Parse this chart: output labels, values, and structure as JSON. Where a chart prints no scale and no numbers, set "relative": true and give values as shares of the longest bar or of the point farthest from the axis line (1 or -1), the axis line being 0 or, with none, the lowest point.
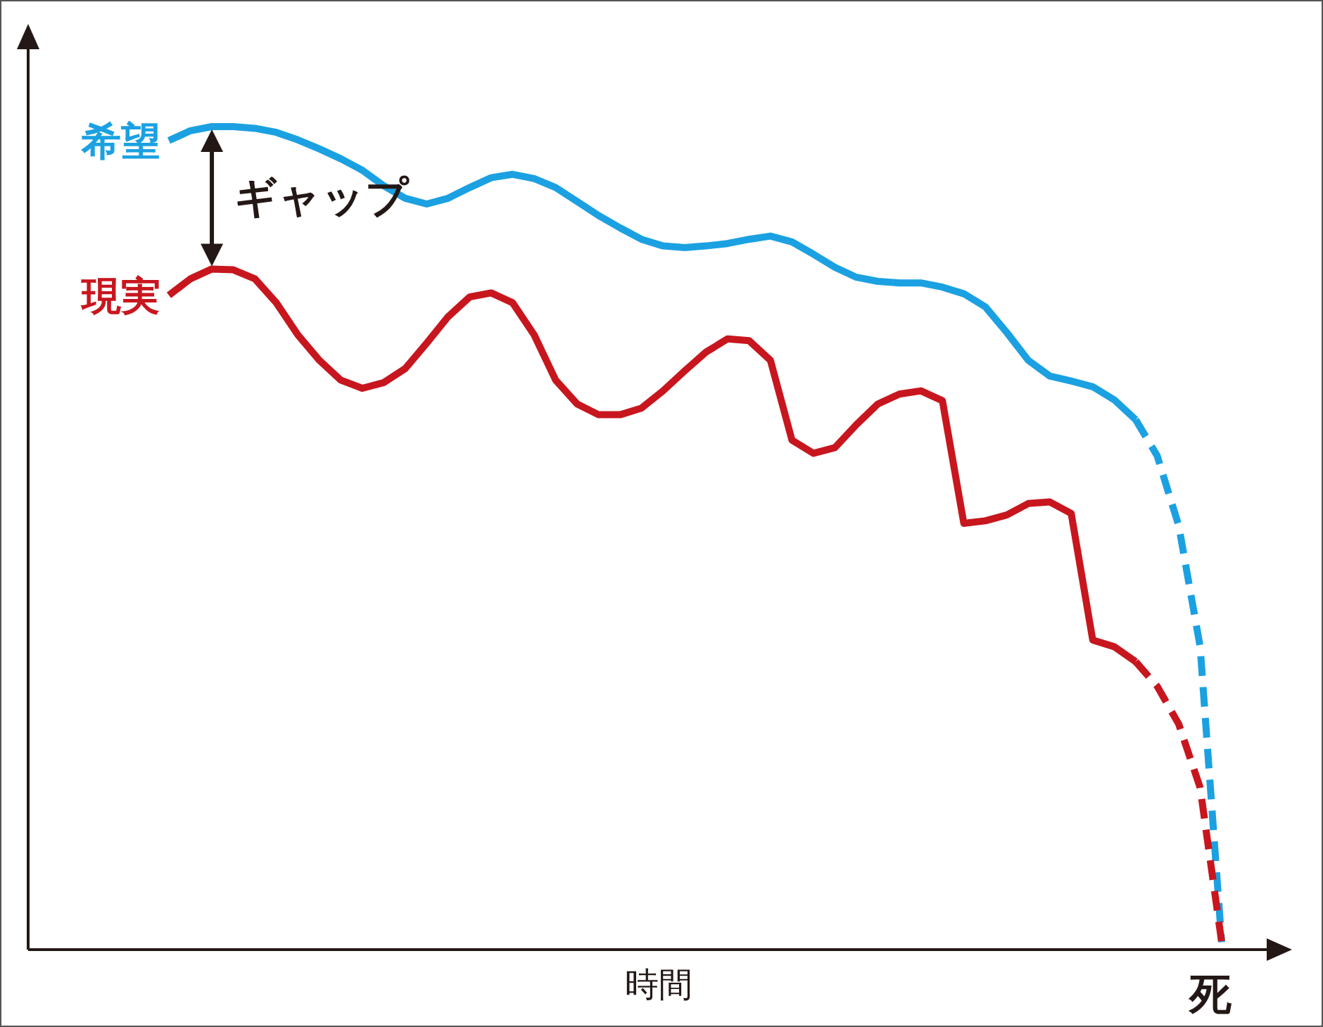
{
  "chart_data": {
    "type": "line",
    "relative": true,
    "xlabel": "時間",
    "line_style": "solid",
    "marker": "none",
    "legend": "left",
    "annotations": [
      "ギャップ",
      "死"
    ],
    "categories": [
      null,
      null,
      null,
      null,
      null,
      null,
      null,
      null,
      null,
      null,
      null,
      null,
      null,
      null,
      null,
      null,
      null,
      null,
      null,
      null,
      null,
      null,
      null,
      null,
      null,
      null,
      null,
      null,
      null,
      null,
      null,
      null,
      null,
      null,
      null,
      null,
      null,
      null,
      null,
      null,
      null,
      null,
      null,
      null,
      null,
      null,
      null,
      null,
      null,
      null
    ],
    "series": [
      {
        "name": "希望",
        "color": "#1ba1e2",
        "values": [
          0.983,
          0.995,
          1.0,
          1.0,
          0.998,
          0.993,
          0.984,
          0.973,
          0.961,
          0.947,
          0.928,
          0.913,
          0.906,
          0.913,
          0.926,
          0.938,
          0.942,
          0.937,
          0.926,
          0.909,
          0.892,
          0.877,
          0.863,
          0.855,
          0.853,
          0.855,
          0.858,
          0.863,
          0.867,
          0.86,
          0.845,
          0.829,
          0.817,
          0.812,
          0.81,
          0.81,
          0.805,
          0.797,
          0.781,
          0.75,
          0.716,
          0.697,
          0.691,
          0.684,
          0.668,
          0.644,
          null,
          null,
          null,
          null
        ]
      },
      {
        "color": "#1ba1e2",
        "line_style": "dashed",
        "values": [
          null,
          null,
          null,
          null,
          null,
          null,
          null,
          null,
          null,
          null,
          null,
          null,
          null,
          null,
          null,
          null,
          null,
          null,
          null,
          null,
          null,
          null,
          null,
          null,
          null,
          null,
          null,
          null,
          null,
          null,
          null,
          null,
          null,
          null,
          null,
          null,
          null,
          null,
          null,
          null,
          null,
          null,
          null,
          null,
          null,
          0.644,
          0.6,
          0.515,
          0.368,
          0.009
        ]
      },
      {
        "name": "現実",
        "color": "#c8161e",
        "values": [
          0.795,
          0.815,
          0.827,
          0.826,
          0.815,
          0.786,
          0.747,
          0.716,
          0.692,
          0.682,
          0.689,
          0.706,
          0.737,
          0.769,
          0.793,
          0.798,
          0.786,
          0.747,
          0.692,
          0.663,
          0.65,
          0.65,
          0.658,
          0.679,
          0.703,
          0.726,
          0.742,
          0.74,
          0.716,
          0.619,
          0.603,
          0.61,
          0.638,
          0.663,
          0.675,
          0.679,
          0.667,
          0.518,
          0.521,
          0.528,
          0.542,
          0.544,
          0.53,
          0.376,
          0.368,
          0.35,
          null,
          null,
          null,
          null
        ]
      },
      {
        "color": "#c8161e",
        "line_style": "dashed",
        "values": [
          null,
          null,
          null,
          null,
          null,
          null,
          null,
          null,
          null,
          null,
          null,
          null,
          null,
          null,
          null,
          null,
          null,
          null,
          null,
          null,
          null,
          null,
          null,
          null,
          null,
          null,
          null,
          null,
          null,
          null,
          null,
          null,
          null,
          null,
          null,
          null,
          null,
          null,
          null,
          null,
          null,
          null,
          null,
          null,
          null,
          0.35,
          0.32,
          0.274,
          0.197,
          0.009
        ]
      }
    ]
  }
}
